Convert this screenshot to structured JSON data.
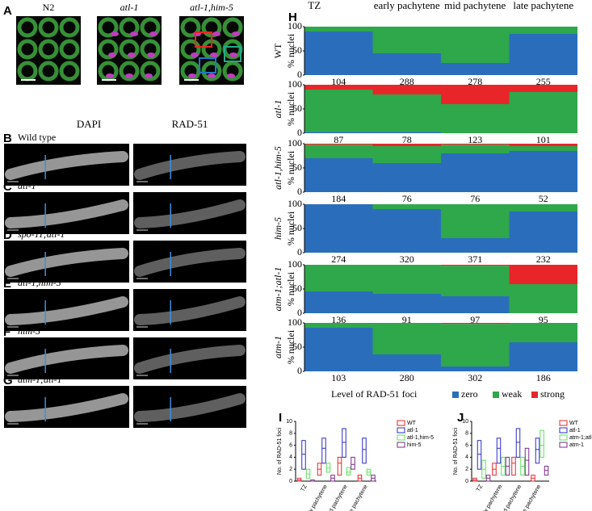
{
  "panel_a": {
    "letter": "A",
    "images": [
      "N2",
      "atl-1",
      "atl-1,him-5"
    ]
  },
  "panels_bg": {
    "columns": [
      "DAPI",
      "RAD-51"
    ],
    "rows": [
      {
        "letter": "B",
        "label": "Wild type"
      },
      {
        "letter": "C",
        "label": "atl-1"
      },
      {
        "letter": "D",
        "label": "spo-11;atl-1"
      },
      {
        "letter": "E",
        "label": "atl-1,him-5"
      },
      {
        "letter": "F",
        "label": "him-5"
      },
      {
        "letter": "G",
        "label": "atm-1;atl-1"
      }
    ]
  },
  "h_panel": {
    "letter": "H",
    "legend_title": "Level of RAD-51 foci"
  },
  "chart_data": [
    {
      "type": "bar",
      "stacked": true,
      "genotype": "WT",
      "ylabel": "% nuclei",
      "categories": [
        "TZ",
        "early pachytene",
        "mid pachytene",
        "late pachytene"
      ],
      "ylim": [
        0,
        100
      ],
      "yticks": [
        0,
        50,
        100
      ],
      "n": [
        "104",
        "288",
        "278",
        "255"
      ],
      "series": [
        {
          "name": "zero",
          "color": "#2a6ebb",
          "values": [
            90,
            45,
            25,
            85
          ]
        },
        {
          "name": "weak",
          "color": "#2ea84a",
          "values": [
            10,
            55,
            75,
            15
          ]
        },
        {
          "name": "strong",
          "color": "#e8262a",
          "values": [
            0,
            0,
            0,
            0
          ]
        }
      ]
    },
    {
      "type": "bar",
      "stacked": true,
      "genotype": "atl-1",
      "ylabel": "% nuclei",
      "ylim": [
        0,
        100
      ],
      "yticks": [
        0,
        50,
        100
      ],
      "n": [
        "87",
        "78",
        "123",
        "101"
      ],
      "series": [
        {
          "name": "zero",
          "color": "#2a6ebb",
          "values": [
            3,
            3,
            0,
            0
          ]
        },
        {
          "name": "weak",
          "color": "#2ea84a",
          "values": [
            87,
            77,
            60,
            85
          ]
        },
        {
          "name": "strong",
          "color": "#e8262a",
          "values": [
            10,
            20,
            40,
            15
          ]
        }
      ]
    },
    {
      "type": "bar",
      "stacked": true,
      "genotype": "atl-1,him-5",
      "ylabel": "% nuclei",
      "ylim": [
        0,
        100
      ],
      "yticks": [
        0,
        50,
        100
      ],
      "n": [
        "184",
        "76",
        "76",
        "52"
      ],
      "series": [
        {
          "name": "zero",
          "color": "#2a6ebb",
          "values": [
            70,
            60,
            80,
            85
          ]
        },
        {
          "name": "weak",
          "color": "#2ea84a",
          "values": [
            28,
            35,
            18,
            10
          ]
        },
        {
          "name": "strong",
          "color": "#e8262a",
          "values": [
            2,
            5,
            2,
            5
          ]
        }
      ]
    },
    {
      "type": "bar",
      "stacked": true,
      "genotype": "him-5",
      "ylabel": "% nuclei",
      "ylim": [
        0,
        100
      ],
      "yticks": [
        0,
        50,
        100
      ],
      "n": [
        "274",
        "320",
        "371",
        "232"
      ],
      "series": [
        {
          "name": "zero",
          "color": "#2a6ebb",
          "values": [
            100,
            90,
            30,
            85
          ]
        },
        {
          "name": "weak",
          "color": "#2ea84a",
          "values": [
            0,
            10,
            70,
            15
          ]
        },
        {
          "name": "strong",
          "color": "#e8262a",
          "values": [
            0,
            0,
            0,
            0
          ]
        }
      ]
    },
    {
      "type": "bar",
      "stacked": true,
      "genotype": "atm-1;atl-1",
      "ylabel": "% nuclei",
      "ylim": [
        0,
        100
      ],
      "yticks": [
        0,
        50,
        100
      ],
      "n": [
        "136",
        "91",
        "97",
        "95"
      ],
      "series": [
        {
          "name": "zero",
          "color": "#2a6ebb",
          "values": [
            45,
            40,
            35,
            0
          ]
        },
        {
          "name": "weak",
          "color": "#2ea84a",
          "values": [
            55,
            60,
            63,
            60
          ]
        },
        {
          "name": "strong",
          "color": "#e8262a",
          "values": [
            0,
            0,
            2,
            40
          ]
        }
      ]
    },
    {
      "type": "bar",
      "stacked": true,
      "genotype": "atm-1",
      "ylabel": "% nuclei",
      "ylim": [
        0,
        100
      ],
      "yticks": [
        0,
        50,
        100
      ],
      "n": [
        "103",
        "280",
        "302",
        "186"
      ],
      "series": [
        {
          "name": "zero",
          "color": "#2a6ebb",
          "values": [
            90,
            35,
            10,
            60
          ]
        },
        {
          "name": "weak",
          "color": "#2ea84a",
          "values": [
            10,
            65,
            88,
            40
          ]
        },
        {
          "name": "strong",
          "color": "#e8262a",
          "values": [
            0,
            0,
            2,
            0
          ]
        }
      ]
    },
    {
      "type": "box",
      "panel_letter": "I",
      "ylabel": "No. of RAD-51 foci",
      "categories": [
        "TZ",
        "early pachytene",
        "mid pachytene",
        "late pachytene"
      ],
      "ylim": [
        0,
        10
      ],
      "yticks": [
        0,
        2,
        4,
        6,
        8,
        10
      ],
      "series": [
        {
          "name": "WT",
          "color": "#e8262a",
          "q1": [
            0,
            1,
            1,
            0
          ],
          "median": [
            0.2,
            2,
            3,
            0.5
          ],
          "q3": [
            0.5,
            3,
            4,
            1
          ]
        },
        {
          "name": "atl-1",
          "color": "#2b2bc8",
          "q1": [
            2,
            3,
            4,
            3
          ],
          "median": [
            4.5,
            5.5,
            6.5,
            5.3
          ],
          "q3": [
            6.8,
            7.2,
            8.8,
            7.2
          ]
        },
        {
          "name": "atl-1,him-5",
          "color": "#5ee05e",
          "q1": [
            0.5,
            1.5,
            1,
            1
          ],
          "median": [
            1.2,
            2.2,
            1.5,
            1.5
          ],
          "q3": [
            2,
            3,
            2.3,
            2
          ]
        },
        {
          "name": "him-5",
          "color": "#7a2a8a",
          "q1": [
            0,
            0,
            2,
            0
          ],
          "median": [
            0,
            0.5,
            2.8,
            0.5
          ],
          "q3": [
            0.2,
            1,
            4,
            1
          ]
        }
      ]
    },
    {
      "type": "box",
      "panel_letter": "J",
      "ylabel": "No. of RAD-51 foci",
      "categories": [
        "TZ",
        "early pachytene",
        "mid pachytene",
        "late pachytene"
      ],
      "ylim": [
        0,
        10
      ],
      "yticks": [
        0,
        2,
        4,
        6,
        8,
        10
      ],
      "series": [
        {
          "name": "WT",
          "color": "#e8262a",
          "q1": [
            0,
            1,
            1,
            0
          ],
          "median": [
            0.2,
            2,
            3,
            0.5
          ],
          "q3": [
            0.5,
            3,
            4,
            1
          ]
        },
        {
          "name": "atl-1",
          "color": "#2b2bc8",
          "q1": [
            2,
            3,
            4,
            3
          ],
          "median": [
            4.5,
            5.5,
            6.5,
            5.3
          ],
          "q3": [
            6.8,
            7.2,
            8.8,
            7.2
          ]
        },
        {
          "name": "atm-1;atl-1",
          "color": "#5ee05e",
          "q1": [
            0.5,
            1,
            1,
            4
          ],
          "median": [
            2,
            2.5,
            2.5,
            6
          ],
          "q3": [
            3.5,
            4,
            4,
            8.5
          ]
        },
        {
          "name": "atm-1",
          "color": "#7a2a8a",
          "q1": [
            0,
            1,
            1,
            1
          ],
          "median": [
            0.5,
            2.5,
            3.5,
            1.8
          ],
          "q3": [
            1,
            4,
            5.5,
            2.5
          ]
        }
      ]
    }
  ]
}
